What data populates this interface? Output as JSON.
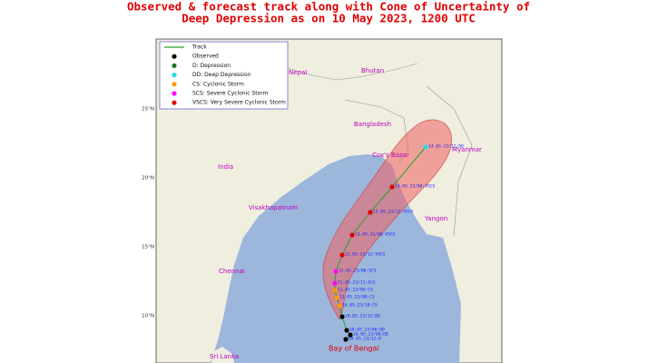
{
  "title": [
    "Observed & forecast track along with Cone of Uncertainty of",
    "Deep Depression as on 10 May 2023, 1200 UTC"
  ],
  "legend": [
    {
      "label": "Track",
      "color": "#2ca02c",
      "kind": "line"
    },
    {
      "label": "Observed",
      "color": "#000000",
      "kind": "dot"
    },
    {
      "label": "D: Depression",
      "color": "#1a7a1a",
      "kind": "dot"
    },
    {
      "label": "DD: Deep Depression",
      "color": "#22dddd",
      "kind": "dot"
    },
    {
      "label": "CS: Cyclonic Storm",
      "color": "#ff9900",
      "kind": "dot"
    },
    {
      "label": "SCS: Severe Cyclonic Storm",
      "color": "#ff00ff",
      "kind": "dot"
    },
    {
      "label": "VSCS: Very Severe Cyclonic Storm",
      "color": "#dd0000",
      "kind": "dot"
    }
  ],
  "latitude_labels": [
    "25°N",
    "20°N",
    "15°N",
    "10°N"
  ],
  "places": [
    "Nepal",
    "Bhutan",
    "Bangladesh",
    "India",
    "Cox's Bazar",
    "Myanmar",
    "Visakhapatnam",
    "Yangon",
    "Chennai",
    "Sri Lanka",
    "Bay of Bengal"
  ],
  "track_points": [
    {
      "label": "09.05.23/12:D",
      "color": "#000000"
    },
    {
      "label": "10.05.23/00:DD",
      "color": "#000000"
    },
    {
      "label": "10.05.23/06:DD",
      "color": "#000000"
    },
    {
      "label": "10.05.23/12:DD",
      "color": "#000000"
    },
    {
      "label": "10.05.23/18:CS",
      "color": "#ff9900"
    },
    {
      "label": "11.05.23/00:CS",
      "color": "#ff9900"
    },
    {
      "label": "11.05.23/06:CS",
      "color": "#ff9900"
    },
    {
      "label": "11.05.23/12:SCS",
      "color": "#ff00ff"
    },
    {
      "label": "12.05.23/00:SCS",
      "color": "#ff00ff"
    },
    {
      "label": "12.05.23/12:VSCS",
      "color": "#dd0000"
    },
    {
      "label": "13.05.23/00:VSCS",
      "color": "#dd0000"
    },
    {
      "label": "13.05.23/12:VSCS",
      "color": "#dd0000"
    },
    {
      "label": "14.05.23/00:VSCS",
      "color": "#dd0000"
    },
    {
      "label": "14.05.23/12:DD",
      "color": "#22dddd"
    }
  ]
}
